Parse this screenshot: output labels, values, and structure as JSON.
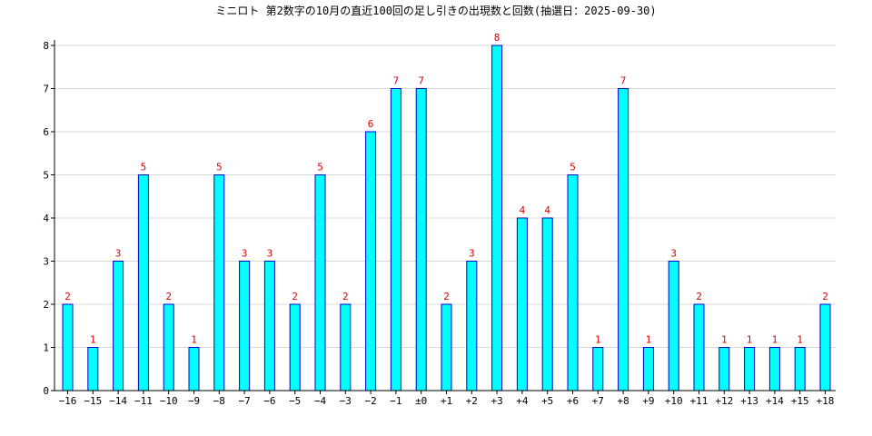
{
  "colors": {
    "bar_fill": "#00ffff",
    "bar_stroke": "#0000cc",
    "data_label": "#dd0000",
    "grid": "#d8d8d8",
    "axis": "#000000"
  },
  "chart_data": {
    "type": "bar",
    "title": "ミニロト 第2数字の10月の直近100回の足し引きの出現数と回数(抽選日：2025-09-30)",
    "xlabel": "",
    "ylabel": "",
    "ylim": [
      0,
      8
    ],
    "yticks": [
      0,
      1,
      2,
      3,
      4,
      5,
      6,
      7,
      8
    ],
    "grid": true,
    "categories": [
      "−16",
      "−15",
      "−14",
      "−11",
      "−10",
      "−9",
      "−8",
      "−7",
      "−6",
      "−5",
      "−4",
      "−3",
      "−2",
      "−1",
      "±0",
      "+1",
      "+2",
      "+3",
      "+4",
      "+5",
      "+6",
      "+7",
      "+8",
      "+9",
      "+10",
      "+11",
      "+12",
      "+13",
      "+14",
      "+15",
      "+18"
    ],
    "values": [
      2,
      1,
      3,
      5,
      2,
      1,
      5,
      3,
      3,
      2,
      5,
      2,
      6,
      7,
      7,
      2,
      3,
      8,
      4,
      4,
      5,
      1,
      7,
      1,
      3,
      2,
      1,
      1,
      1,
      1,
      2
    ]
  }
}
